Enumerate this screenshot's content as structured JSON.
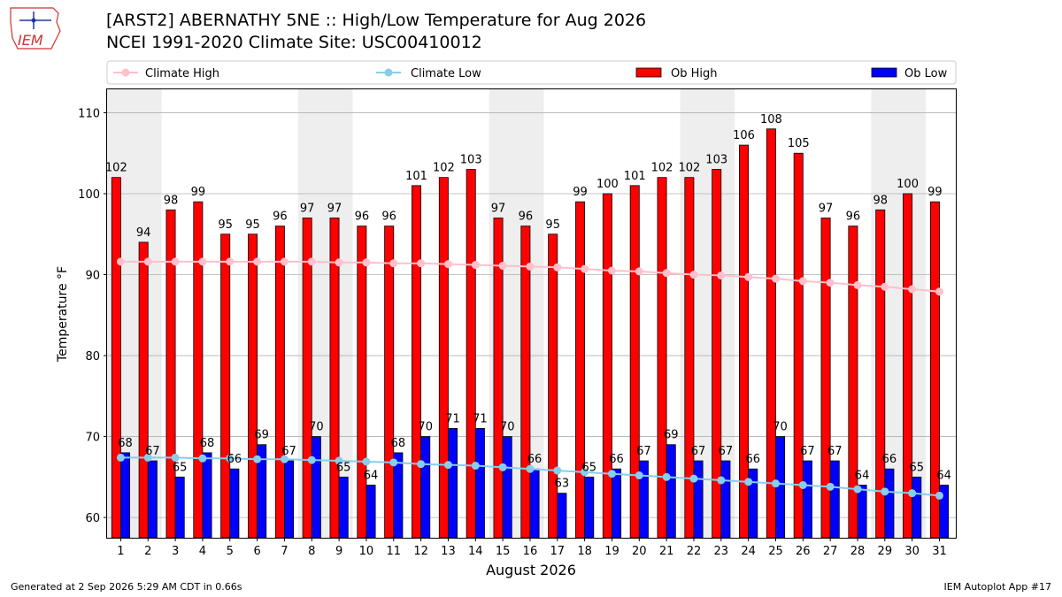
{
  "header": {
    "title_line1": "[ARST2] ABERNATHY 5NE :: High/Low Temperature for Aug 2026",
    "title_line2": "NCEI 1991-2020 Climate Site: USC00410012",
    "logo_text": "IEM"
  },
  "footer": {
    "generated": "Generated at 2 Sep 2026 5:29 AM CDT in 0.66s",
    "app": "IEM Autoplot App #17"
  },
  "colors": {
    "ob_high": "#ff0000",
    "ob_low": "#0000ff",
    "climate_high": "#ffc0cb",
    "climate_low": "#87ceeb",
    "weekend_band": "#eeeeee",
    "logo": "#cc3333"
  },
  "chart_data": {
    "type": "bar",
    "xlabel": "August 2026",
    "ylabel": "Temperature °F",
    "ylim": [
      57.5,
      113
    ],
    "yticks": [
      60,
      70,
      80,
      90,
      100,
      110
    ],
    "grid": "horizontal",
    "legend_position": "top",
    "categories": [
      "1",
      "2",
      "3",
      "4",
      "5",
      "6",
      "7",
      "8",
      "9",
      "10",
      "11",
      "12",
      "13",
      "14",
      "15",
      "16",
      "17",
      "18",
      "19",
      "20",
      "21",
      "22",
      "23",
      "24",
      "25",
      "26",
      "27",
      "28",
      "29",
      "30",
      "31"
    ],
    "weekend_days": [
      1,
      2,
      8,
      9,
      15,
      16,
      22,
      23,
      29,
      30
    ],
    "series": [
      {
        "name": "Ob High",
        "kind": "bar",
        "values": [
          102,
          94,
          98,
          99,
          95,
          95,
          96,
          97,
          97,
          96,
          96,
          101,
          102,
          103,
          97,
          96,
          95,
          99,
          100,
          101,
          102,
          102,
          103,
          106,
          108,
          105,
          97,
          96,
          98,
          100,
          99
        ]
      },
      {
        "name": "Ob Low",
        "kind": "bar",
        "values": [
          68,
          67,
          65,
          68,
          66,
          69,
          67,
          70,
          65,
          64,
          68,
          70,
          71,
          71,
          70,
          66,
          63,
          65,
          66,
          67,
          69,
          67,
          67,
          66,
          70,
          67,
          67,
          64,
          66,
          65,
          64
        ]
      },
      {
        "name": "Climate High",
        "kind": "line",
        "values": [
          91.6,
          91.6,
          91.6,
          91.6,
          91.6,
          91.6,
          91.6,
          91.6,
          91.5,
          91.5,
          91.4,
          91.4,
          91.3,
          91.2,
          91.1,
          91.0,
          90.9,
          90.7,
          90.5,
          90.4,
          90.2,
          90.0,
          89.9,
          89.7,
          89.5,
          89.2,
          89.0,
          88.7,
          88.5,
          88.2,
          87.9
        ]
      },
      {
        "name": "Climate Low",
        "kind": "line",
        "values": [
          67.4,
          67.4,
          67.4,
          67.3,
          67.3,
          67.2,
          67.2,
          67.1,
          67.0,
          66.9,
          66.8,
          66.6,
          66.5,
          66.4,
          66.2,
          66.0,
          65.8,
          65.6,
          65.4,
          65.2,
          65.0,
          64.8,
          64.6,
          64.4,
          64.2,
          64.0,
          63.8,
          63.5,
          63.2,
          63.0,
          62.7
        ]
      }
    ]
  }
}
